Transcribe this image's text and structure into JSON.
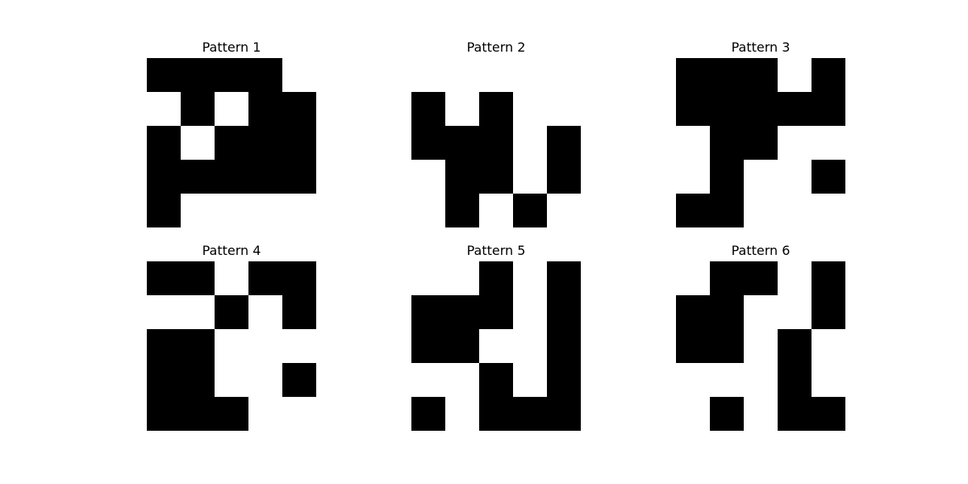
{
  "chart_data": [
    {
      "type": "heatmap",
      "title": "Pattern 1",
      "colormap": {
        "1": "#000000",
        "0": "#ffffff"
      },
      "grid": false,
      "matrix": [
        [
          1,
          1,
          1,
          1,
          0
        ],
        [
          0,
          1,
          0,
          1,
          1
        ],
        [
          1,
          0,
          1,
          1,
          1
        ],
        [
          1,
          1,
          1,
          1,
          1
        ],
        [
          1,
          0,
          0,
          0,
          0
        ]
      ]
    },
    {
      "type": "heatmap",
      "title": "Pattern 2",
      "colormap": {
        "1": "#000000",
        "0": "#ffffff"
      },
      "grid": false,
      "matrix": [
        [
          0,
          0,
          0,
          0,
          0
        ],
        [
          1,
          0,
          1,
          0,
          0
        ],
        [
          1,
          1,
          1,
          0,
          1
        ],
        [
          0,
          1,
          1,
          0,
          1
        ],
        [
          0,
          1,
          0,
          1,
          0
        ]
      ]
    },
    {
      "type": "heatmap",
      "title": "Pattern 3",
      "colormap": {
        "1": "#000000",
        "0": "#ffffff"
      },
      "grid": false,
      "matrix": [
        [
          1,
          1,
          1,
          0,
          1
        ],
        [
          1,
          1,
          1,
          1,
          1
        ],
        [
          0,
          1,
          1,
          0,
          0
        ],
        [
          0,
          1,
          0,
          0,
          1
        ],
        [
          1,
          1,
          0,
          0,
          0
        ]
      ]
    },
    {
      "type": "heatmap",
      "title": "Pattern 4",
      "colormap": {
        "1": "#000000",
        "0": "#ffffff"
      },
      "grid": false,
      "matrix": [
        [
          1,
          1,
          0,
          1,
          1
        ],
        [
          0,
          0,
          1,
          0,
          1
        ],
        [
          1,
          1,
          0,
          0,
          0
        ],
        [
          1,
          1,
          0,
          0,
          1
        ],
        [
          1,
          1,
          1,
          0,
          0
        ]
      ]
    },
    {
      "type": "heatmap",
      "title": "Pattern 5",
      "colormap": {
        "1": "#000000",
        "0": "#ffffff"
      },
      "grid": false,
      "matrix": [
        [
          0,
          0,
          1,
          0,
          1
        ],
        [
          1,
          1,
          1,
          0,
          1
        ],
        [
          1,
          1,
          0,
          0,
          1
        ],
        [
          0,
          0,
          1,
          0,
          1
        ],
        [
          1,
          0,
          1,
          1,
          1
        ]
      ]
    },
    {
      "type": "heatmap",
      "title": "Pattern 6",
      "colormap": {
        "1": "#000000",
        "0": "#ffffff"
      },
      "grid": false,
      "matrix": [
        [
          0,
          1,
          1,
          0,
          1
        ],
        [
          1,
          1,
          0,
          0,
          1
        ],
        [
          1,
          1,
          0,
          1,
          0
        ],
        [
          0,
          0,
          0,
          1,
          0
        ],
        [
          0,
          1,
          0,
          1,
          1
        ]
      ]
    }
  ]
}
